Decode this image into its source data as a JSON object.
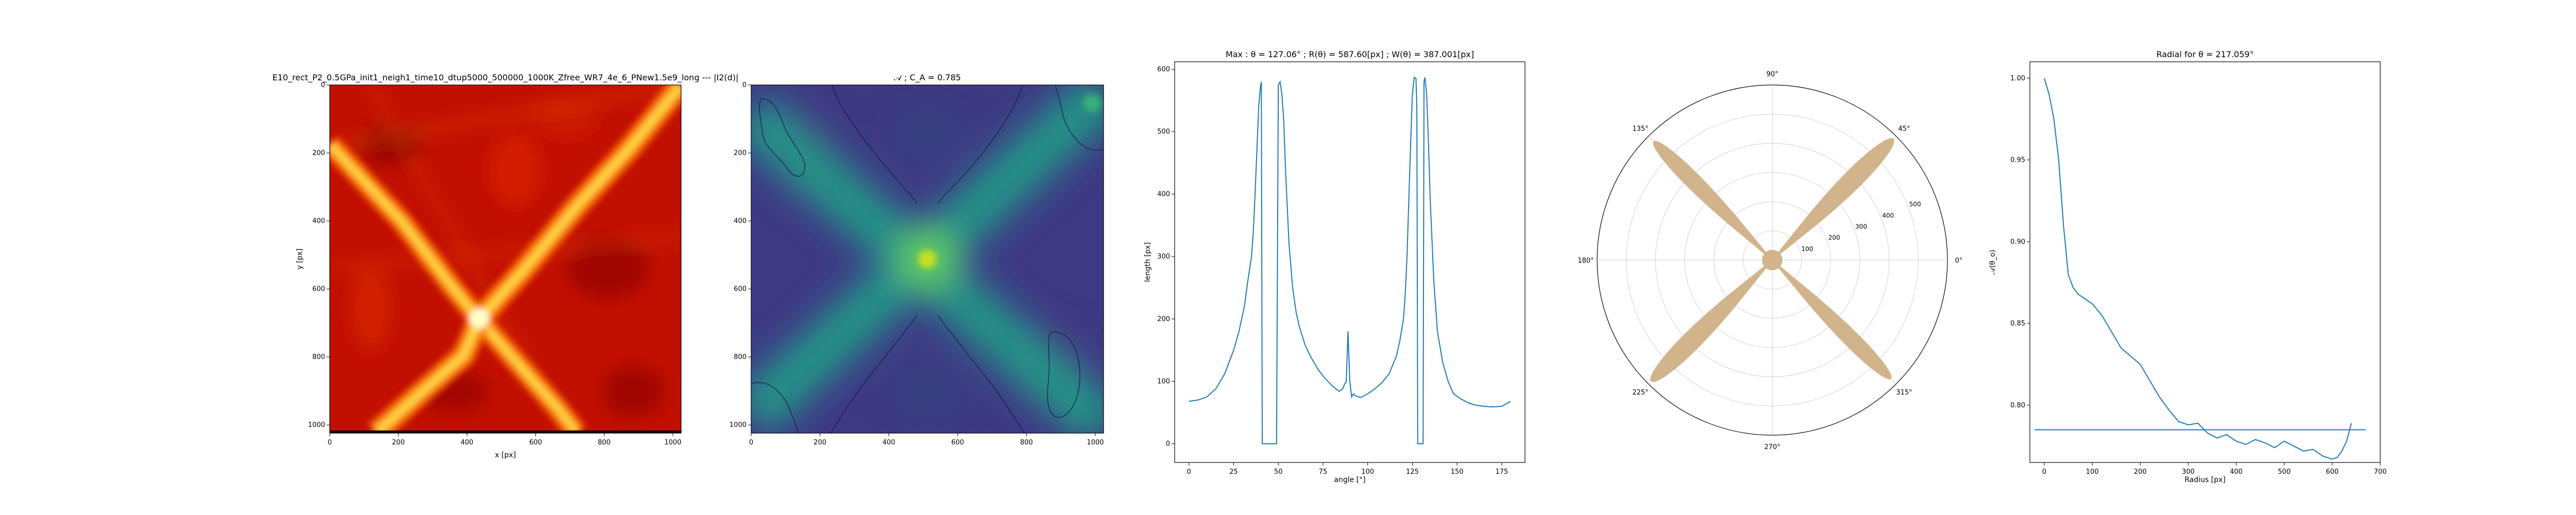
{
  "chart_data": [
    {
      "type": "heatmap",
      "colormap": "hot",
      "title": "E10_rect_P2_0.5GPa_init1_neigh1_time10_dtup5000_500000_1000K_Zfree_WR7_4e_6_PNew1.5e9_long --- |I2(d)|",
      "xlabel": "x [px]",
      "ylabel": "y [px]",
      "xlim": [
        0,
        1024
      ],
      "ylim": [
        1024,
        0
      ],
      "xticks": [
        "0",
        "200",
        "400",
        "600",
        "800",
        "1000"
      ],
      "yticks": [
        "0",
        "200",
        "400",
        "600",
        "800",
        "1000"
      ],
      "features": [
        {
          "kind": "bright-line",
          "from": [
            0,
            170
          ],
          "to": [
            1024,
            0
          ]
        },
        {
          "kind": "bright-line",
          "from": [
            140,
            0
          ],
          "to": [
            960,
            1024
          ]
        },
        {
          "kind": "peak",
          "x": 430,
          "y": 630
        }
      ]
    },
    {
      "type": "heatmap",
      "colormap": "viridis",
      "title": "𝒜 ; C_A = 0.785",
      "xlabel": "",
      "ylabel": "",
      "xlim": [
        0,
        1024
      ],
      "ylim": [
        1024,
        0
      ],
      "xticks": [
        "0",
        "200",
        "400",
        "600",
        "800",
        "1000"
      ],
      "yticks": [
        "0",
        "200",
        "400",
        "600",
        "800",
        "1000"
      ],
      "features": [
        {
          "kind": "band",
          "from": [
            0,
            950
          ],
          "to": [
            1024,
            30
          ]
        },
        {
          "kind": "band",
          "from": [
            0,
            90
          ],
          "to": [
            1024,
            1000
          ]
        },
        {
          "kind": "peak",
          "x": 512,
          "y": 512
        }
      ]
    },
    {
      "type": "line",
      "title": "Max : θ = 127.06° ; R(θ) = 587.60[px] ; W(θ) = 387.001[px]",
      "xlabel": "angle [°]",
      "ylabel": "length [px]",
      "xlim": [
        -8,
        188
      ],
      "ylim": [
        -30,
        612
      ],
      "xticks": [
        0,
        25,
        50,
        75,
        100,
        125,
        150,
        175
      ],
      "yticks": [
        0,
        100,
        200,
        300,
        400,
        500,
        600
      ],
      "series": [
        {
          "x": [
            0,
            5,
            10,
            15,
            20,
            25,
            28,
            31,
            33,
            35,
            36,
            37,
            38,
            39,
            40,
            40.5,
            41,
            49,
            50,
            51,
            52,
            53,
            54,
            56,
            58,
            60,
            62,
            65,
            68,
            72,
            76,
            80,
            84,
            86,
            87,
            88,
            89,
            90,
            91,
            92,
            93,
            96,
            100,
            104,
            108,
            112,
            116,
            118,
            120,
            121,
            122,
            123,
            124,
            125,
            126,
            127,
            127.5,
            128,
            131,
            131.5,
            132,
            133,
            134,
            135,
            137,
            139,
            142,
            145,
            148,
            152,
            156,
            160,
            165,
            170,
            175,
            180
          ],
          "y": [
            68,
            70,
            75,
            88,
            112,
            150,
            180,
            220,
            262,
            300,
            340,
            400,
            470,
            540,
            572,
            580,
            0,
            0,
            575,
            580,
            560,
            520,
            440,
            320,
            250,
            210,
            185,
            158,
            140,
            120,
            105,
            93,
            84,
            88,
            95,
            100,
            180,
            100,
            75,
            80,
            77,
            74,
            80,
            88,
            98,
            112,
            140,
            165,
            200,
            240,
            300,
            390,
            480,
            560,
            587,
            585,
            540,
            0,
            0,
            580,
            587,
            560,
            480,
            390,
            260,
            180,
            130,
            100,
            80,
            72,
            66,
            62,
            60,
            59,
            60,
            68
          ]
        }
      ]
    },
    {
      "type": "polar",
      "fill_color": "#D2B48C",
      "angle_labels": [
        "0°",
        "45°",
        "90°",
        "135°",
        "180°",
        "225°",
        "270°",
        "315°"
      ],
      "radial_ticks": [
        "100",
        "200",
        "300",
        "400",
        "500"
      ],
      "rmax": 600,
      "lobes": [
        {
          "center_deg": 45,
          "r_max": 587,
          "half_width_deg": 7
        },
        {
          "center_deg": 135,
          "r_max": 575,
          "half_width_deg": 6
        },
        {
          "center_deg": 225,
          "r_max": 587,
          "half_width_deg": 7
        },
        {
          "center_deg": 315,
          "r_max": 575,
          "half_width_deg": 6
        }
      ]
    },
    {
      "type": "line",
      "title": "Radial for θ = 217.059°",
      "xlabel": "Radius [px]",
      "ylabel": "𝒜(θ_o)",
      "xlim": [
        -30,
        700
      ],
      "ylim": [
        0.765,
        1.01
      ],
      "xticks": [
        0,
        100,
        200,
        300,
        400,
        500,
        600,
        700
      ],
      "yticks": [
        0.8,
        0.85,
        0.9,
        0.95,
        1.0
      ],
      "series": [
        {
          "x": [
            0,
            10,
            20,
            30,
            40,
            50,
            60,
            70,
            80,
            100,
            120,
            140,
            160,
            180,
            200,
            220,
            240,
            260,
            280,
            300,
            320,
            340,
            360,
            380,
            400,
            420,
            440,
            460,
            480,
            500,
            520,
            540,
            560,
            580,
            600,
            610,
            620,
            630,
            640
          ],
          "y": [
            1.0,
            0.99,
            0.975,
            0.95,
            0.91,
            0.88,
            0.872,
            0.868,
            0.866,
            0.862,
            0.855,
            0.845,
            0.835,
            0.83,
            0.825,
            0.815,
            0.805,
            0.797,
            0.79,
            0.788,
            0.789,
            0.783,
            0.78,
            0.782,
            0.778,
            0.776,
            0.779,
            0.777,
            0.774,
            0.778,
            0.775,
            0.772,
            0.773,
            0.769,
            0.767,
            0.768,
            0.772,
            0.778,
            0.789
          ]
        },
        {
          "x": [
            -20,
            670
          ],
          "y": [
            0.785,
            0.785
          ]
        }
      ]
    }
  ]
}
